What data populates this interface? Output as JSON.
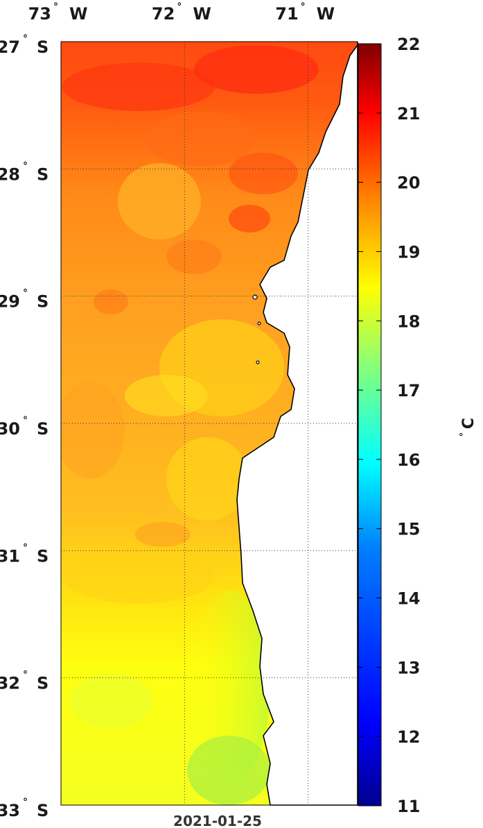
{
  "date": "2021-01-25",
  "lon_labels": [
    {
      "deg": "73",
      "hemi": "W",
      "value": -73
    },
    {
      "deg": "72",
      "hemi": "W",
      "value": -72
    },
    {
      "deg": "71",
      "hemi": "W",
      "value": -71
    }
  ],
  "lat_labels": [
    {
      "deg": "27",
      "hemi": "S",
      "value": -27
    },
    {
      "deg": "28",
      "hemi": "S",
      "value": -28
    },
    {
      "deg": "29",
      "hemi": "S",
      "value": -29
    },
    {
      "deg": "30",
      "hemi": "S",
      "value": -30
    },
    {
      "deg": "31",
      "hemi": "S",
      "value": -31
    },
    {
      "deg": "32",
      "hemi": "S",
      "value": -32
    },
    {
      "deg": "33",
      "hemi": "S",
      "value": -33
    }
  ],
  "colorbar": {
    "unit_symbol": "°",
    "unit_letter": "C",
    "min": 11,
    "max": 22,
    "ticks": [
      "11",
      "12",
      "13",
      "14",
      "15",
      "16",
      "17",
      "18",
      "19",
      "20",
      "21",
      "22"
    ],
    "colors": [
      "#00008f",
      "#0000ff",
      "#0080ff",
      "#00ffff",
      "#80ff80",
      "#ffff00",
      "#ff8000",
      "#ff0000",
      "#800000"
    ]
  },
  "map": {
    "lon_range": [
      -73.0,
      -70.6
    ],
    "lat_range": [
      -33.0,
      -27.0
    ],
    "colors": {
      "land": "#ffffff",
      "coast": "#000000",
      "grid": "#333333"
    }
  }
}
